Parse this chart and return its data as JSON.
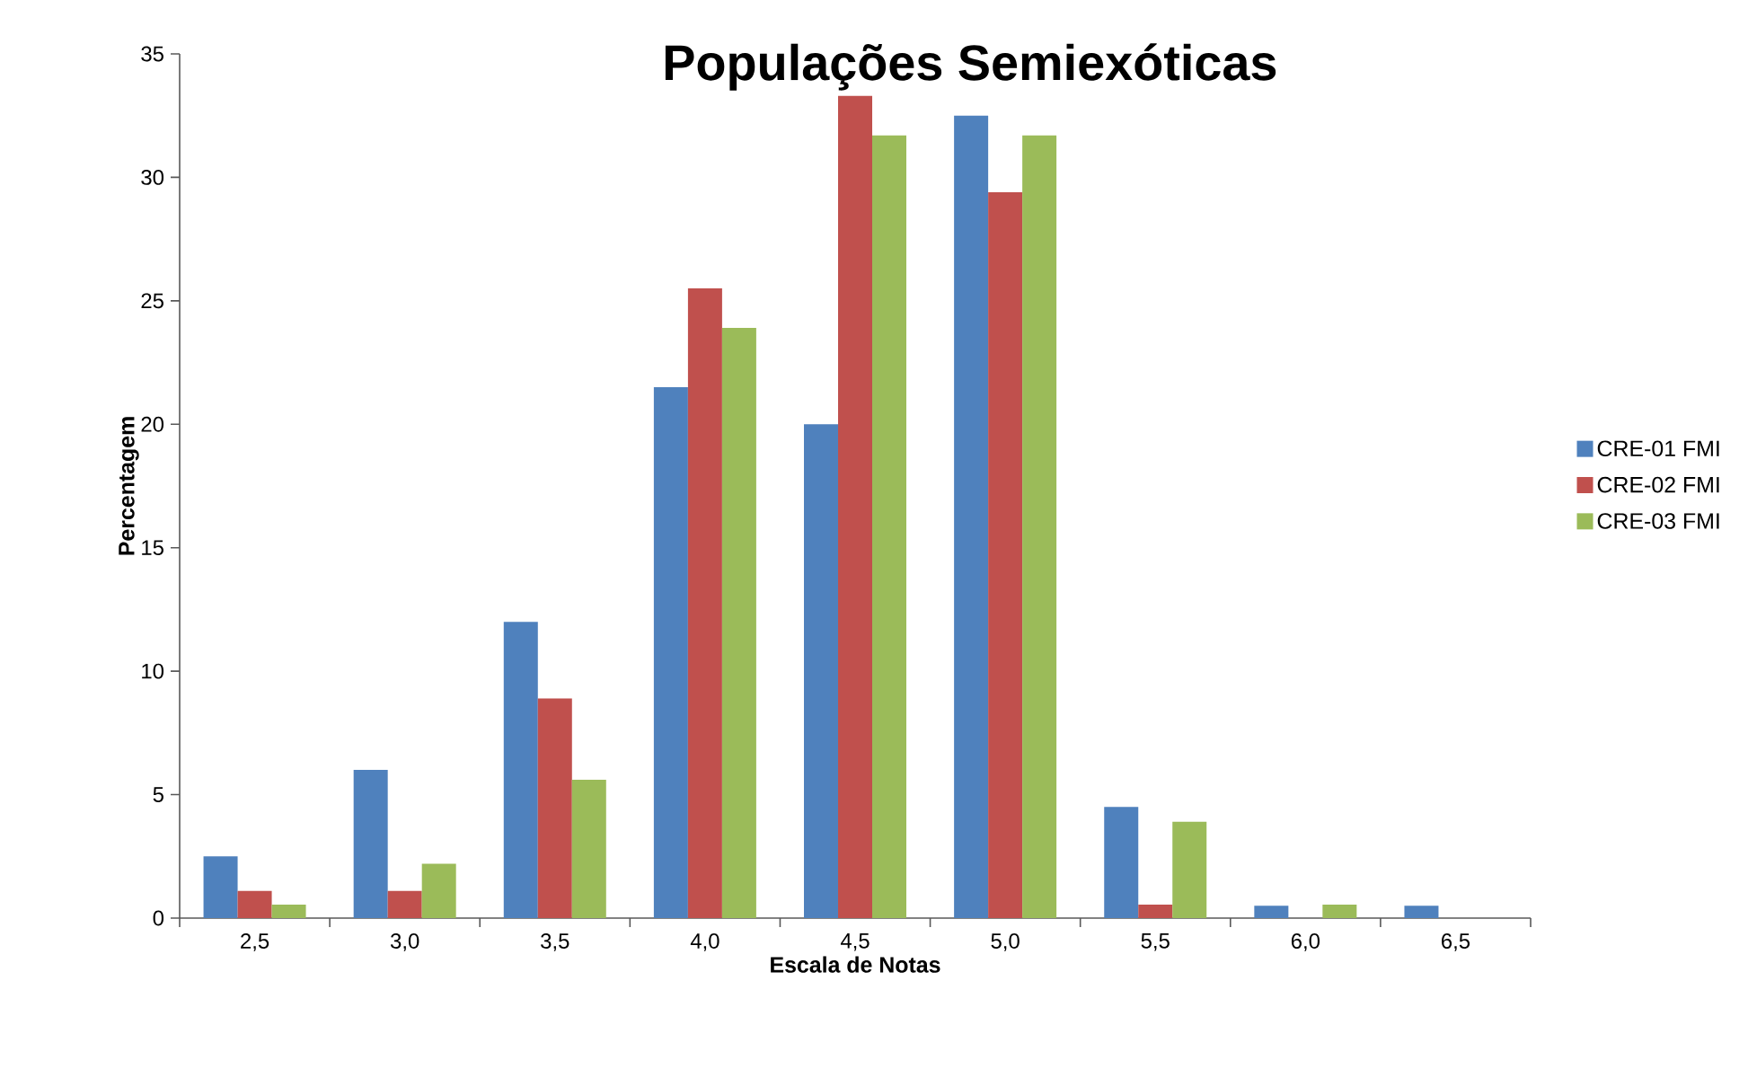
{
  "chart_data": {
    "type": "bar",
    "title": "Populações Semiexóticas",
    "xlabel": "Escala de Notas",
    "ylabel": "Percentagem",
    "categories": [
      "2,5",
      "3,0",
      "3,5",
      "4,0",
      "4,5",
      "5,0",
      "5,5",
      "6,0",
      "6,5"
    ],
    "series": [
      {
        "name": "CRE-01 FMI",
        "color": "#4f81bd",
        "values": [
          2.5,
          6,
          12,
          21.5,
          20,
          32.5,
          4.5,
          0.5,
          0.5
        ]
      },
      {
        "name": "CRE-02 FMI",
        "color": "#c0504d",
        "values": [
          1.1,
          1.1,
          8.9,
          25.5,
          33.3,
          29.4,
          0.55,
          0,
          0
        ]
      },
      {
        "name": "CRE-03 FMI",
        "color": "#9bbb59",
        "values": [
          0.55,
          2.2,
          5.6,
          23.9,
          31.7,
          31.7,
          3.9,
          0.55,
          0
        ]
      }
    ],
    "ylim": [
      0,
      35
    ],
    "yticks": [
      0,
      5,
      10,
      15,
      20,
      25,
      30,
      35
    ],
    "grid": false,
    "legend": "right"
  }
}
